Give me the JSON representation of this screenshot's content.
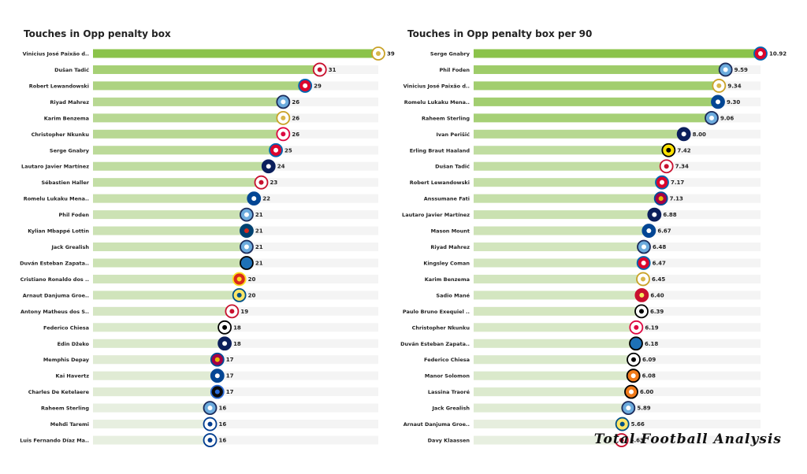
{
  "watermark": "Total Football Analysis",
  "colors": {
    "bar_high": "#8bc34a",
    "bar_low": "#e7efe0",
    "row_bg": "#f4f4f4",
    "text": "#222222"
  },
  "chart_data": [
    {
      "type": "bar",
      "title": "Touches in Opp penalty box",
      "orientation": "horizontal",
      "value_format": "integer",
      "xlim": [
        0,
        39
      ],
      "categories": [
        "Vinicius José Paixão d..",
        "Dušan Tadić",
        "Robert Lewandowski",
        "Riyad Mahrez",
        "Karim Benzema",
        "Christopher Nkunku",
        "Serge  Gnabry",
        "Lautaro Javier Martínez",
        "Sébastien Haller",
        "Romelu Lukaku Mena..",
        "Phil Foden",
        "Kylian Mbappé Lottin",
        "Jack Grealish",
        "Duván Esteban Zapata..",
        "Cristiano Ronaldo dos ..",
        "Arnaut Danjuma Groe..",
        "Antony Matheus dos S..",
        "Federico Chiesa",
        "Edin Džeko",
        "Memphis Depay",
        "Kai Havertz",
        "Charles De Ketelaere",
        "Raheem Sterling",
        "Mehdi Taremi",
        "Luis Fernando Díaz Ma.."
      ],
      "values": [
        39,
        31,
        29,
        26,
        26,
        26,
        25,
        24,
        23,
        22,
        21,
        21,
        21,
        21,
        20,
        20,
        19,
        18,
        18,
        17,
        17,
        17,
        16,
        16,
        16
      ],
      "clubs": [
        "real-madrid",
        "ajax",
        "bayern",
        "man-city",
        "real-madrid",
        "leipzig",
        "bayern",
        "inter",
        "ajax",
        "chelsea",
        "man-city",
        "psg",
        "man-city",
        "atalanta",
        "man-utd",
        "villarreal",
        "ajax",
        "juventus",
        "inter",
        "barcelona",
        "chelsea",
        "club-brugge",
        "man-city",
        "porto",
        "porto"
      ]
    },
    {
      "type": "bar",
      "title": "Touches in Opp penalty box per 90",
      "orientation": "horizontal",
      "value_format": "2dp",
      "xlim": [
        0,
        10.92
      ],
      "categories": [
        "Serge  Gnabry",
        "Phil Foden",
        "Vinicius José Paixão d..",
        "Romelu Lukaku Mena..",
        "Raheem Sterling",
        "Ivan Perišić",
        "Erling Braut Haaland",
        "Dušan Tadić",
        "Robert Lewandowski",
        "Anssumane Fati",
        "Lautaro Javier Martínez",
        "Mason Mount",
        "Riyad Mahrez",
        "Kingsley Coman",
        "Karim Benzema",
        "Sadio Mané",
        "Paulo Bruno Exequiel ..",
        "Christopher Nkunku",
        "Duván Esteban Zapata..",
        "Federico Chiesa",
        "Manor Solomon",
        "Lassina Traoré",
        "Jack Grealish",
        "Arnaut Danjuma Groe..",
        "Davy Klaassen"
      ],
      "values": [
        10.92,
        9.59,
        9.34,
        9.3,
        9.06,
        8.0,
        7.42,
        7.34,
        7.17,
        7.13,
        6.88,
        6.67,
        6.48,
        6.47,
        6.45,
        6.4,
        6.39,
        6.19,
        6.18,
        6.09,
        6.08,
        6.0,
        5.89,
        5.66,
        5.63
      ],
      "clubs": [
        "bayern",
        "man-city",
        "real-madrid",
        "chelsea",
        "man-city",
        "inter",
        "dortmund",
        "ajax",
        "bayern",
        "barcelona",
        "inter",
        "chelsea",
        "man-city",
        "bayern",
        "real-madrid",
        "liverpool",
        "juventus",
        "leipzig",
        "atalanta",
        "juventus",
        "shakhtar",
        "shakhtar",
        "man-city",
        "villarreal",
        "ajax"
      ]
    }
  ]
}
